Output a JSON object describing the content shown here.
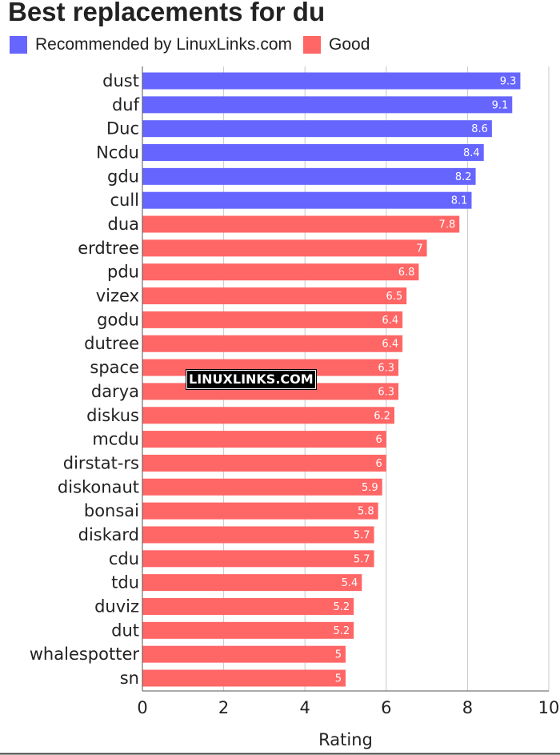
{
  "title": "Best replacements for du",
  "legend": [
    {
      "label": "Recommended by LinuxLinks.com",
      "color": "#6666ff"
    },
    {
      "label": "Good",
      "color": "#ff6666"
    }
  ],
  "watermark": "LINUXLINKS.COM",
  "chart_data": {
    "type": "bar",
    "orientation": "horizontal",
    "categories": [
      "dust",
      "duf",
      "Duc",
      "Ncdu",
      "gdu",
      "cull",
      "dua",
      "erdtree",
      "pdu",
      "vizex",
      "godu",
      "dutree",
      "space",
      "darya",
      "diskus",
      "mcdu",
      "dirstat-rs",
      "diskonaut",
      "bonsai",
      "diskard",
      "cdu",
      "tdu",
      "duviz",
      "dut",
      "whalespotter",
      "sn"
    ],
    "values": [
      9.3,
      9.1,
      8.6,
      8.4,
      8.2,
      8.1,
      7.8,
      7,
      6.8,
      6.5,
      6.4,
      6.4,
      6.3,
      6.3,
      6.2,
      6,
      6,
      5.9,
      5.8,
      5.7,
      5.7,
      5.4,
      5.2,
      5.2,
      5,
      5
    ],
    "groups": [
      "Recommended by LinuxLinks.com",
      "Recommended by LinuxLinks.com",
      "Recommended by LinuxLinks.com",
      "Recommended by LinuxLinks.com",
      "Recommended by LinuxLinks.com",
      "Recommended by LinuxLinks.com",
      "Good",
      "Good",
      "Good",
      "Good",
      "Good",
      "Good",
      "Good",
      "Good",
      "Good",
      "Good",
      "Good",
      "Good",
      "Good",
      "Good",
      "Good",
      "Good",
      "Good",
      "Good",
      "Good",
      "Good"
    ],
    "colors": {
      "Recommended by LinuxLinks.com": "#6666ff",
      "Good": "#ff6666"
    },
    "xlabel": "Rating",
    "ylabel": "",
    "xlim": [
      0,
      10
    ],
    "xticks": [
      0,
      2,
      4,
      6,
      8,
      10
    ],
    "grid": true,
    "legend_position": "top-left",
    "data_labels": true
  }
}
